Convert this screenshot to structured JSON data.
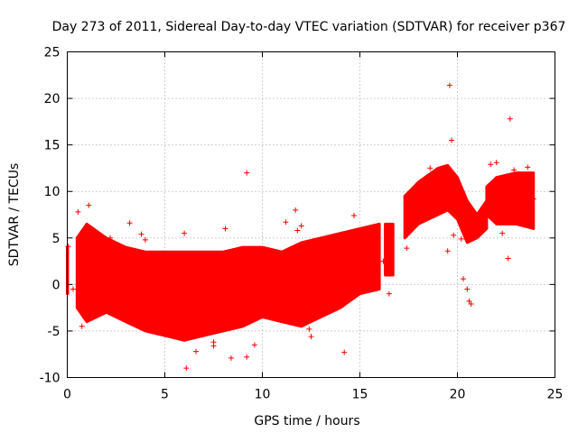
{
  "chart_data": {
    "type": "scatter",
    "title": "Day 273 of 2011, Sidereal Day-to-day VTEC variation (SDTVAR) for receiver p367",
    "xlabel": "GPS time / hours",
    "ylabel": "SDTVAR / TECUs",
    "xlim": [
      0,
      25
    ],
    "ylim": [
      -10,
      25
    ],
    "xticks": [
      0,
      5,
      10,
      15,
      20,
      25
    ],
    "yticks": [
      -10,
      -5,
      0,
      5,
      10,
      15,
      20,
      25
    ],
    "grid": true,
    "marker": "+",
    "color": "#ff0000",
    "series": [
      {
        "name": "SDTVAR",
        "bands": [
          {
            "x": [
              0.0,
              0.02
            ],
            "low": [
              -1.0,
              -1.0
            ],
            "high": [
              4.0,
              4.0
            ]
          },
          {
            "x": [
              0.5,
              1.0,
              2.0,
              3.0,
              4.0,
              5.0,
              6.0,
              7.0,
              8.0,
              9.0,
              10.0,
              11.0,
              12.0,
              13.0,
              14.0,
              15.0,
              16.0
            ],
            "low": [
              -2.5,
              -4.0,
              -3.0,
              -4.0,
              -5.0,
              -5.5,
              -6.0,
              -5.5,
              -5.0,
              -4.5,
              -3.5,
              -4.0,
              -4.5,
              -3.5,
              -2.5,
              -1.0,
              -0.5
            ],
            "high": [
              5.0,
              6.5,
              5.0,
              4.0,
              3.5,
              3.5,
              3.5,
              3.5,
              3.5,
              4.0,
              4.0,
              3.5,
              4.5,
              5.0,
              5.5,
              6.0,
              6.5
            ]
          },
          {
            "x": [
              16.3,
              16.7
            ],
            "low": [
              1.0,
              1.0
            ],
            "high": [
              6.5,
              6.5
            ]
          },
          {
            "x": [
              17.3,
              18.0,
              19.0,
              19.5,
              20.0,
              20.5,
              21.0,
              21.5
            ],
            "low": [
              5.0,
              6.5,
              7.5,
              8.0,
              7.0,
              4.5,
              5.0,
              6.0
            ],
            "high": [
              9.5,
              11.0,
              12.5,
              12.8,
              11.5,
              9.0,
              7.5,
              9.0
            ]
          },
          {
            "x": [
              21.5,
              22.0,
              23.0,
              23.9
            ],
            "low": [
              7.5,
              6.5,
              6.5,
              6.0
            ],
            "high": [
              10.5,
              11.5,
              12.0,
              12.0
            ]
          }
        ],
        "points": [
          [
            0.05,
            4.1
          ],
          [
            0.3,
            -0.5
          ],
          [
            0.55,
            7.8
          ],
          [
            0.75,
            -4.5
          ],
          [
            1.1,
            8.5
          ],
          [
            0.9,
            -3.6
          ],
          [
            2.2,
            5.0
          ],
          [
            3.2,
            6.6
          ],
          [
            3.8,
            5.4
          ],
          [
            4.0,
            4.8
          ],
          [
            5.2,
            3.0
          ],
          [
            5.4,
            -4.4
          ],
          [
            6.0,
            5.5
          ],
          [
            6.1,
            -9.0
          ],
          [
            6.6,
            -7.2
          ],
          [
            7.5,
            -6.2
          ],
          [
            7.5,
            -6.6
          ],
          [
            8.1,
            6.0
          ],
          [
            8.4,
            -7.9
          ],
          [
            9.2,
            12.0
          ],
          [
            9.2,
            -7.8
          ],
          [
            9.6,
            -6.5
          ],
          [
            11.2,
            6.7
          ],
          [
            11.7,
            8.0
          ],
          [
            11.8,
            5.8
          ],
          [
            12.0,
            6.3
          ],
          [
            12.4,
            -4.8
          ],
          [
            12.5,
            -5.6
          ],
          [
            12.7,
            4.3
          ],
          [
            14.2,
            -7.3
          ],
          [
            14.7,
            7.4
          ],
          [
            15.5,
            -0.4
          ],
          [
            15.7,
            -0.3
          ],
          [
            16.2,
            2.5
          ],
          [
            16.5,
            -1.0
          ],
          [
            17.4,
            3.9
          ],
          [
            17.6,
            8.5
          ],
          [
            18.3,
            10.7
          ],
          [
            18.6,
            12.5
          ],
          [
            19.5,
            3.6
          ],
          [
            19.6,
            21.4
          ],
          [
            19.7,
            15.5
          ],
          [
            19.8,
            5.3
          ],
          [
            20.2,
            4.9
          ],
          [
            20.3,
            0.6
          ],
          [
            20.5,
            -0.5
          ],
          [
            20.6,
            -1.8
          ],
          [
            20.7,
            -2.1
          ],
          [
            21.1,
            5.7
          ],
          [
            21.7,
            12.9
          ],
          [
            22.0,
            13.1
          ],
          [
            22.3,
            5.5
          ],
          [
            22.6,
            2.8
          ],
          [
            22.7,
            17.8
          ],
          [
            22.9,
            12.3
          ],
          [
            23.6,
            12.6
          ],
          [
            23.9,
            9.2
          ]
        ]
      }
    ]
  }
}
